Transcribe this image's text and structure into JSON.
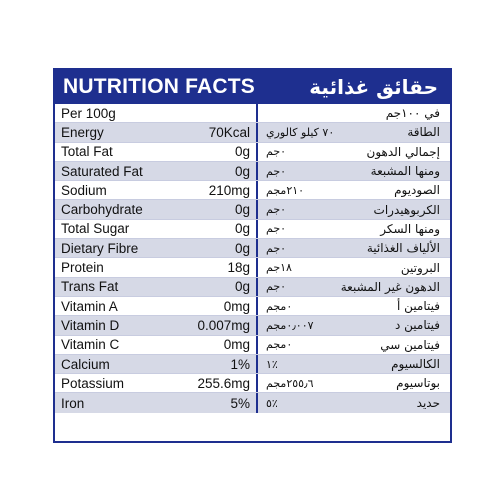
{
  "header": {
    "title_en": "NUTRITION FACTS",
    "title_ar": "حقائق غذائية"
  },
  "colors": {
    "header_bg": "#1e2f8f",
    "row_shade": "#d6d9e6",
    "divider": "#1e2f8f"
  },
  "rows": [
    {
      "nutrient": "Per 100g",
      "value": "",
      "ar_value": "",
      "ar_name": "في ١٠٠جم"
    },
    {
      "nutrient": "Energy",
      "value": "70Kcal",
      "ar_value": "٧٠ كيلو كالوري",
      "ar_name": "الطاقة"
    },
    {
      "nutrient": "Total Fat",
      "value": "0g",
      "ar_value": "٠جم",
      "ar_name": "إجمالي الدهون"
    },
    {
      "nutrient": "Saturated Fat",
      "value": "0g",
      "ar_value": "٠جم",
      "ar_name": "ومنها المشبعة"
    },
    {
      "nutrient": "Sodium",
      "value": "210mg",
      "ar_value": "٢١٠مجم",
      "ar_name": "الصوديوم"
    },
    {
      "nutrient": "Carbohydrate",
      "value": "0g",
      "ar_value": "٠جم",
      "ar_name": "الكربوهيدرات"
    },
    {
      "nutrient": "Total Sugar",
      "value": "0g",
      "ar_value": "٠جم",
      "ar_name": "ومنها السكر"
    },
    {
      "nutrient": "Dietary Fibre",
      "value": "0g",
      "ar_value": "٠جم",
      "ar_name": "الألياف الغذائية"
    },
    {
      "nutrient": "Protein",
      "value": "18g",
      "ar_value": "١٨جم",
      "ar_name": "البروتين"
    },
    {
      "nutrient": "Trans Fat",
      "value": "0g",
      "ar_value": "٠جم",
      "ar_name": "الدهون غير المشبعة"
    },
    {
      "nutrient": "Vitamin A",
      "value": "0mg",
      "ar_value": "٠مجم",
      "ar_name": "فيتامين أ"
    },
    {
      "nutrient": "Vitamin D",
      "value": "0.007mg",
      "ar_value": "٠٫٠٠٧مجم",
      "ar_name": "فيتامين د"
    },
    {
      "nutrient": "Vitamin C",
      "value": "0mg",
      "ar_value": "٠مجم",
      "ar_name": "فيتامين سي"
    },
    {
      "nutrient": "Calcium",
      "value": "1%",
      "ar_value": "١٪",
      "ar_name": "الكالسيوم"
    },
    {
      "nutrient": "Potassium",
      "value": "255.6mg",
      "ar_value": "٢٥٥٫٦مجم",
      "ar_name": "بوتاسيوم"
    },
    {
      "nutrient": "Iron",
      "value": "5%",
      "ar_value": "٥٪",
      "ar_name": "حديد"
    }
  ]
}
